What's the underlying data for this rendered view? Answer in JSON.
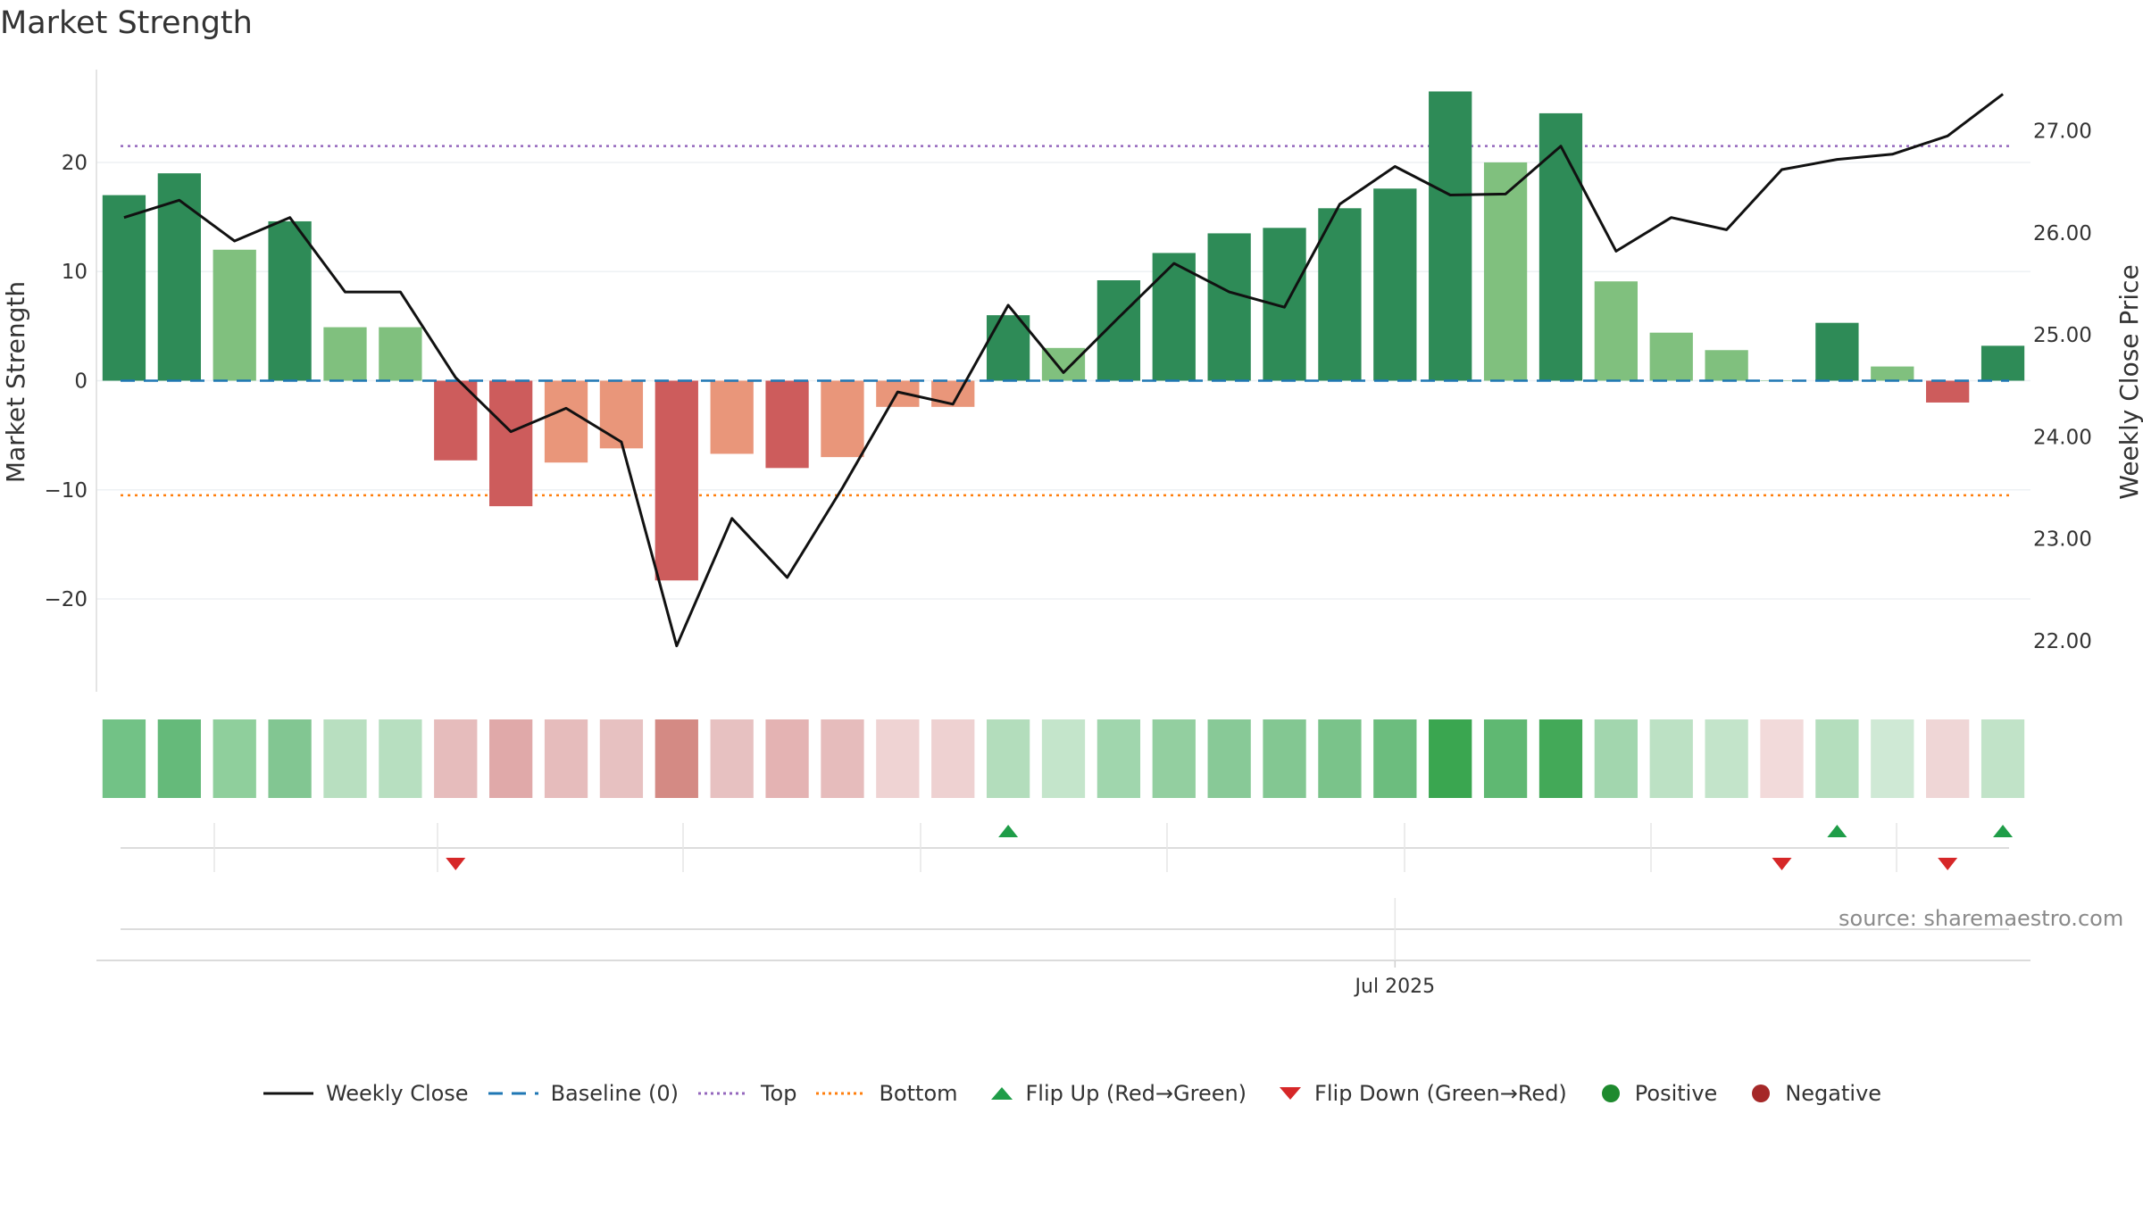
{
  "title": "Market Strength",
  "source": "source: sharemaestro.com",
  "chart_data": {
    "type": "bar",
    "title": "Market Strength",
    "ylabel_left": "Market Strength",
    "ylabel_right": "Weekly Close Price",
    "ylim_left": [
      -28.5,
      28.5
    ],
    "ylim_right": [
      21.5,
      27.6
    ],
    "yticks_left": [
      -20,
      -10,
      0,
      10,
      20
    ],
    "yticks_left_labels": [
      "−20",
      "−10",
      "0",
      "10",
      "20"
    ],
    "yticks_right": [
      22,
      23,
      24,
      25,
      26,
      27
    ],
    "yticks_right_labels": [
      "22.00",
      "23.00",
      "24.00",
      "25.00",
      "26.00",
      "27.00"
    ],
    "x_tick_labels": [
      {
        "index": 23,
        "label": "Jul 2025"
      }
    ],
    "strength": [
      17.0,
      19.0,
      12.0,
      14.6,
      4.9,
      4.9,
      -7.3,
      -11.5,
      -7.5,
      -6.2,
      -18.3,
      -6.7,
      -8.0,
      -7.0,
      -2.4,
      -2.4,
      6.0,
      3.0,
      9.2,
      11.7,
      13.5,
      14.0,
      15.8,
      17.6,
      26.5,
      20.0,
      24.5,
      9.1,
      4.4,
      2.8,
      0.0,
      5.3,
      1.3,
      -2.0,
      3.2
    ],
    "bar_colors": [
      "#2e8b57",
      "#2e8b57",
      "#80c07e",
      "#2e8b57",
      "#80c07e",
      "#80c07e",
      "#cd5c5c",
      "#cd5c5c",
      "#e9967a",
      "#e9967a",
      "#cd5c5c",
      "#e9967a",
      "#cd5c5c",
      "#e9967a",
      "#e9967a",
      "#e9967a",
      "#2e8b57",
      "#80c07e",
      "#2e8b57",
      "#2e8b57",
      "#2e8b57",
      "#2e8b57",
      "#2e8b57",
      "#2e8b57",
      "#2e8b57",
      "#80c07e",
      "#2e8b57",
      "#80c07e",
      "#80c07e",
      "#80c07e",
      "#80c07e",
      "#2e8b57",
      "#80c07e",
      "#cd5c5c",
      "#2e8b57"
    ],
    "weekly_close": [
      26.15,
      26.32,
      25.92,
      26.15,
      25.42,
      25.42,
      24.58,
      24.05,
      24.28,
      23.95,
      21.95,
      23.2,
      22.62,
      23.5,
      24.44,
      24.32,
      25.29,
      24.63,
      25.17,
      25.7,
      25.42,
      25.27,
      26.28,
      26.65,
      26.37,
      26.38,
      26.85,
      25.82,
      26.15,
      26.03,
      26.62,
      26.72,
      26.77,
      26.95,
      27.36
    ],
    "heat_colors": [
      "#72c286",
      "#65ba7a",
      "#8fcf9c",
      "#82c692",
      "#b8dfc0",
      "#b7dfc0",
      "#e6bcbc",
      "#e0a9a9",
      "#e6bcbc",
      "#e7c1c1",
      "#d48a84",
      "#e7c1c1",
      "#e4b3b3",
      "#e6bcbc",
      "#efd3d3",
      "#eed1d1",
      "#b3ddbc",
      "#c4e5cb",
      "#a0d6ad",
      "#93cfa0",
      "#88c997",
      "#83c792",
      "#7ac38a",
      "#6cbd7e",
      "#3aa650",
      "#5fb872",
      "#43a958",
      "#a2d6ae",
      "#bce1c4",
      "#c3e4ca",
      "#f2dada",
      "#b4deBD",
      "#cfe9d5",
      "#efd6d6",
      "#c1e3c8"
    ],
    "top_line": 21.5,
    "bottom_line": -10.5,
    "baseline": 0,
    "flip_up_indices": [
      16,
      31,
      34
    ],
    "flip_down_indices": [
      6,
      30,
      33
    ],
    "colors": {
      "weekly_close": "#111111",
      "baseline": "#1f77b4",
      "top": "#9467bd",
      "bottom": "#ff7f0e",
      "flip_up": "#1f9d48",
      "flip_down": "#d62728",
      "positive": "#1e8a2e",
      "negative": "#a52828"
    },
    "legend_position": "bottom-center"
  },
  "legend": {
    "weekly_close": "Weekly Close",
    "baseline": "Baseline (0)",
    "top": "Top",
    "bottom": "Bottom",
    "flip_up": "Flip Up (Red→Green)",
    "flip_down": "Flip Down (Green→Red)",
    "positive": "Positive",
    "negative": "Negative"
  }
}
